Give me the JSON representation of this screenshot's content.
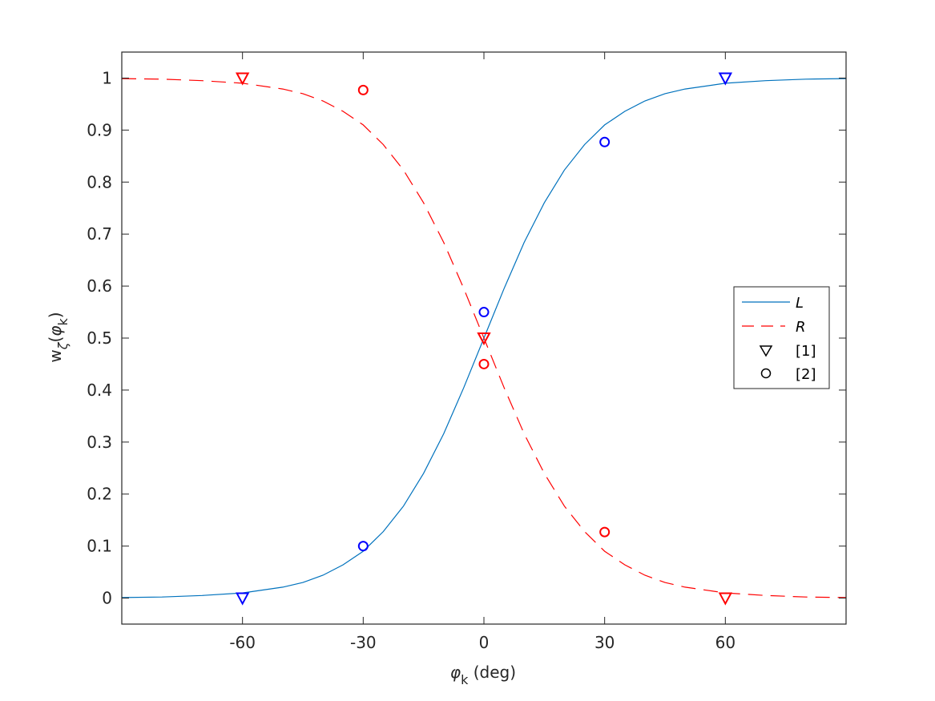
{
  "chart_data": {
    "type": "line",
    "title": "",
    "xlabel": "φ_k (deg)",
    "ylabel": "w_ζ(φ_k)",
    "xlim": [
      -90,
      90
    ],
    "ylim": [
      -0.05,
      1.05
    ],
    "grid": false,
    "legend_position": "east (inside, right-center)",
    "x_ticks": [
      -60,
      -30,
      0,
      30,
      60
    ],
    "x_tick_labels": [
      "-60",
      "-30",
      "0",
      "30",
      "60"
    ],
    "y_ticks": [
      0,
      0.1,
      0.2,
      0.3,
      0.4,
      0.5,
      0.6,
      0.7,
      0.8,
      0.9,
      1
    ],
    "y_tick_labels": [
      "0",
      "0.1",
      "0.2",
      "0.3",
      "0.4",
      "0.5",
      "0.6",
      "0.7",
      "0.8",
      "0.9",
      "1"
    ],
    "series": [
      {
        "name": "L",
        "style": "solid line",
        "color": "#0072BD",
        "x": [
          -90,
          -80,
          -70,
          -60,
          -50,
          -45,
          -40,
          -35,
          -30,
          -25,
          -20,
          -15,
          -10,
          -5,
          0,
          5,
          10,
          15,
          20,
          25,
          30,
          35,
          40,
          45,
          50,
          60,
          70,
          80,
          90
        ],
        "values": [
          0.001,
          0.002,
          0.005,
          0.01,
          0.021,
          0.03,
          0.044,
          0.064,
          0.09,
          0.128,
          0.177,
          0.24,
          0.316,
          0.405,
          0.5,
          0.595,
          0.684,
          0.76,
          0.823,
          0.872,
          0.91,
          0.936,
          0.956,
          0.97,
          0.979,
          0.99,
          0.995,
          0.998,
          0.999
        ]
      },
      {
        "name": "R",
        "style": "dashed line",
        "color": "#FF0000",
        "x": [
          -90,
          -80,
          -70,
          -60,
          -50,
          -45,
          -40,
          -35,
          -30,
          -25,
          -20,
          -15,
          -10,
          -5,
          0,
          5,
          10,
          15,
          20,
          25,
          30,
          35,
          40,
          45,
          50,
          60,
          70,
          80,
          90
        ],
        "values": [
          0.999,
          0.998,
          0.995,
          0.99,
          0.979,
          0.97,
          0.956,
          0.936,
          0.91,
          0.872,
          0.823,
          0.76,
          0.684,
          0.595,
          0.5,
          0.405,
          0.316,
          0.24,
          0.177,
          0.128,
          0.09,
          0.064,
          0.044,
          0.03,
          0.021,
          0.01,
          0.005,
          0.002,
          0.001
        ]
      },
      {
        "name": "[1]",
        "style": "triangle-down markers",
        "points": [
          {
            "x": -60,
            "y": 0.0,
            "color": "#0000FF"
          },
          {
            "x": 60,
            "y": 1.0,
            "color": "#0000FF"
          },
          {
            "x": -60,
            "y": 1.0,
            "color": "#FF0000"
          },
          {
            "x": 60,
            "y": 0.0,
            "color": "#FF0000"
          },
          {
            "x": 0,
            "y": 0.5,
            "color": "#FF0000"
          }
        ]
      },
      {
        "name": "[2]",
        "style": "circle markers",
        "points": [
          {
            "x": -30,
            "y": 0.1,
            "color": "#0000FF"
          },
          {
            "x": 0,
            "y": 0.55,
            "color": "#0000FF"
          },
          {
            "x": 30,
            "y": 0.877,
            "color": "#0000FF"
          },
          {
            "x": -30,
            "y": 0.977,
            "color": "#FF0000"
          },
          {
            "x": 0,
            "y": 0.45,
            "color": "#FF0000"
          },
          {
            "x": 30,
            "y": 0.127,
            "color": "#FF0000"
          }
        ]
      }
    ]
  },
  "axes": {
    "xlabel_symbol": "φ",
    "xlabel_subscript": "k",
    "xlabel_unit": " (deg)",
    "ylabel_main": "w",
    "ylabel_subscript": "ζ",
    "ylabel_open": "(",
    "ylabel_symbol": "φ",
    "ylabel_inner_subscript": "k",
    "ylabel_close": ")"
  },
  "legend": {
    "items": [
      {
        "label": "L",
        "kind": "line",
        "color": "#0072BD"
      },
      {
        "label": "R",
        "kind": "dashed",
        "color": "#FF0000"
      },
      {
        "label": "[1]",
        "kind": "triangle",
        "color": "#000000"
      },
      {
        "label": "[2]",
        "kind": "circle",
        "color": "#000000"
      }
    ]
  },
  "colors": {
    "axis": "#262626",
    "L_line": "#0072BD",
    "R_line": "#FF0000",
    "blue_marker": "#0000FF",
    "red_marker": "#FF0000"
  }
}
